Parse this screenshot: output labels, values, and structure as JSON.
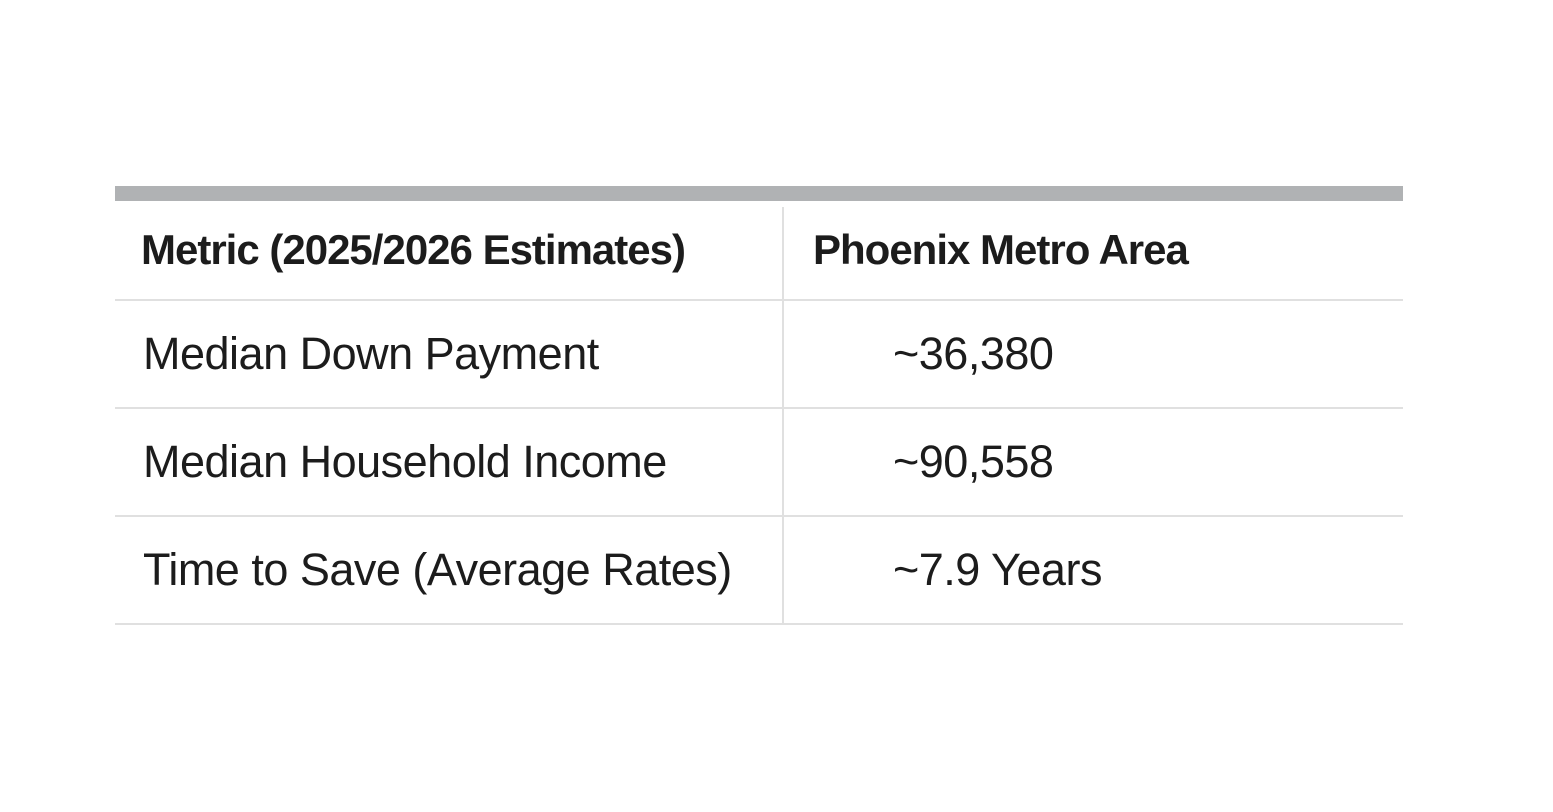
{
  "table": {
    "columns": [
      {
        "label": "Metric (2025/2026 Estimates)"
      },
      {
        "label": "Phoenix Metro Area"
      }
    ],
    "rows": [
      {
        "metric": "Median Down Payment",
        "value": "~36,380"
      },
      {
        "metric": "Median Household Income",
        "value": "~90,558"
      },
      {
        "metric": "Time to Save (Average Rates)",
        "value": "~7.9 Years"
      }
    ],
    "colors": {
      "top_bar": "#b0b2b4",
      "divider": "#e0e0e0",
      "text": "#1c1c1c",
      "background": "#ffffff"
    }
  }
}
